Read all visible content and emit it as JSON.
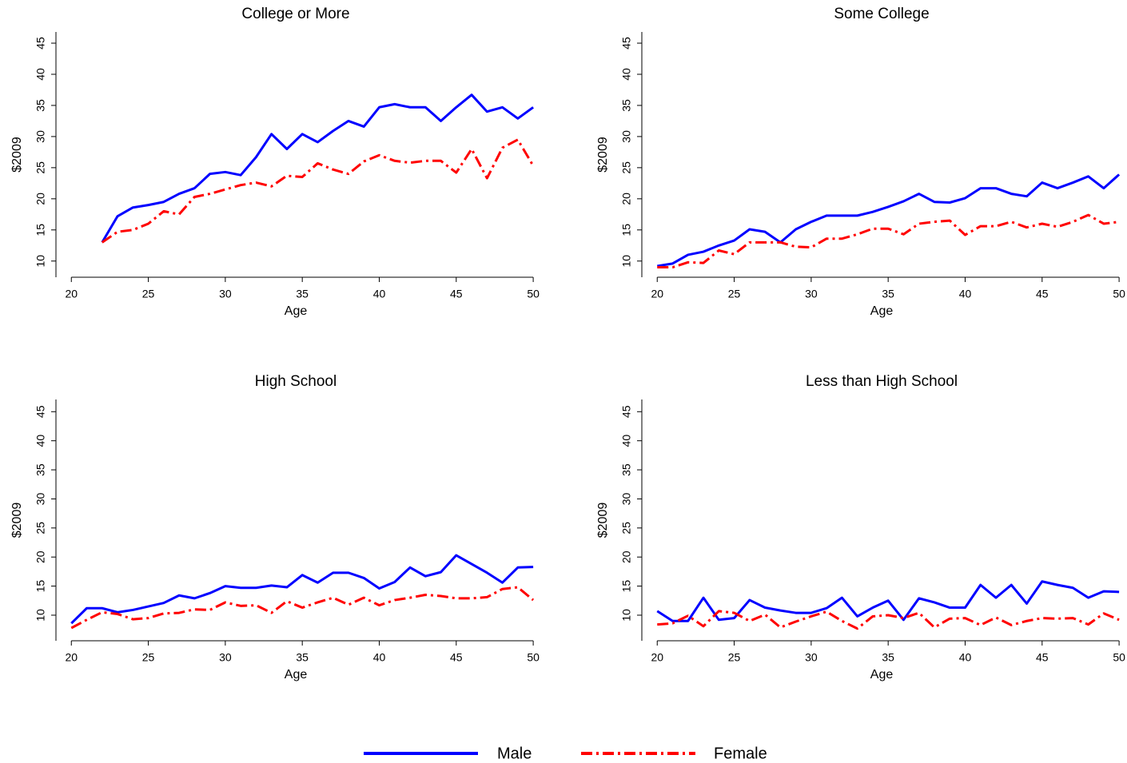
{
  "chart_data": [
    {
      "type": "line",
      "title": "College or More",
      "x_label": "Age",
      "y_label": "$2009",
      "x": [
        22,
        23,
        24,
        25,
        26,
        27,
        28,
        29,
        30,
        31,
        32,
        33,
        34,
        35,
        36,
        37,
        38,
        39,
        40,
        41,
        42,
        43,
        44,
        45,
        46,
        47,
        48,
        49,
        50
      ],
      "series": [
        {
          "name": "Male",
          "color": "#0000ff",
          "linestyle": "solid",
          "values": [
            13,
            17.2,
            18.6,
            19,
            19.5,
            20.8,
            21.7,
            24,
            24.3,
            23.8,
            26.7,
            30.4,
            28,
            30.4,
            29.1,
            30.9,
            32.5,
            31.6,
            34.7,
            35.2,
            34.7,
            34.7,
            32.5,
            34.7,
            36.7,
            34,
            34.7,
            32.9,
            34.7
          ]
        },
        {
          "name": "Female",
          "color": "#ff0000",
          "linestyle": "dashdot",
          "values": [
            13,
            14.7,
            15,
            16,
            18,
            17.5,
            20.3,
            20.8,
            21.5,
            22.2,
            22.6,
            22,
            23.7,
            23.5,
            25.7,
            24.7,
            24,
            26,
            27,
            26.1,
            25.8,
            26.1,
            26.1,
            24.2,
            28,
            23.3,
            28.2,
            29.5,
            25.3
          ]
        }
      ],
      "xlim": [
        19,
        50.15
      ],
      "ylim": [
        7.4,
        46.8
      ],
      "xticks": [
        20,
        25,
        30,
        35,
        40,
        45,
        50
      ],
      "yticks": [
        10,
        15,
        20,
        25,
        30,
        35,
        40,
        45
      ]
    },
    {
      "type": "line",
      "title": "Some College",
      "x_label": "Age",
      "y_label": "$2009",
      "x": [
        20,
        21,
        22,
        23,
        24,
        25,
        26,
        27,
        28,
        29,
        30,
        31,
        32,
        33,
        34,
        35,
        36,
        37,
        38,
        39,
        40,
        41,
        42,
        43,
        44,
        45,
        46,
        47,
        48,
        49,
        50
      ],
      "series": [
        {
          "name": "Male",
          "color": "#0000ff",
          "linestyle": "solid",
          "values": [
            9.2,
            9.6,
            11,
            11.5,
            12.5,
            13.3,
            15.1,
            14.7,
            13,
            15.1,
            16.3,
            17.3,
            17.3,
            17.3,
            17.9,
            18.7,
            19.6,
            20.8,
            19.5,
            19.4,
            20.1,
            21.7,
            21.7,
            20.8,
            20.4,
            22.6,
            21.7,
            22.6,
            23.6,
            21.7,
            23.9
          ]
        },
        {
          "name": "Female",
          "color": "#ff0000",
          "linestyle": "dashdot",
          "values": [
            9,
            9,
            9.8,
            9.7,
            11.7,
            11.1,
            13,
            13,
            13,
            12.3,
            12.2,
            13.6,
            13.6,
            14.3,
            15.2,
            15.2,
            14.3,
            16,
            16.3,
            16.5,
            14.2,
            15.6,
            15.6,
            16.3,
            15.4,
            16,
            15.5,
            16.3,
            17.4,
            16,
            16.3
          ]
        }
      ],
      "xlim": [
        19,
        50.15
      ],
      "ylim": [
        7.4,
        46.8
      ],
      "xticks": [
        20,
        25,
        30,
        35,
        40,
        45,
        50
      ],
      "yticks": [
        10,
        15,
        20,
        25,
        30,
        35,
        40,
        45
      ]
    },
    {
      "type": "line",
      "title": "High School",
      "x_label": "Age",
      "y_label": "$2009",
      "x": [
        20,
        21,
        22,
        23,
        24,
        25,
        26,
        27,
        28,
        29,
        30,
        31,
        32,
        33,
        34,
        35,
        36,
        37,
        38,
        39,
        40,
        41,
        42,
        43,
        44,
        45,
        46,
        47,
        48,
        49,
        50
      ],
      "series": [
        {
          "name": "Male",
          "color": "#0000ff",
          "linestyle": "solid",
          "values": [
            8.6,
            11.2,
            11.2,
            10.5,
            10.9,
            11.5,
            12.1,
            13.4,
            12.9,
            13.8,
            15,
            14.7,
            14.7,
            15.1,
            14.8,
            16.9,
            15.6,
            17.3,
            17.3,
            16.4,
            14.6,
            15.7,
            18.2,
            16.7,
            17.4,
            20.3,
            18.8,
            17.3,
            15.6,
            18.2,
            18.3
          ]
        },
        {
          "name": "Female",
          "color": "#ff0000",
          "linestyle": "dashdot",
          "values": [
            7.8,
            9.2,
            10.5,
            10.2,
            9.3,
            9.5,
            10.3,
            10.4,
            11,
            10.9,
            12.2,
            11.6,
            11.7,
            10.4,
            12.4,
            11.3,
            12.2,
            13,
            11.8,
            13,
            11.7,
            12.6,
            13,
            13.5,
            13.3,
            12.9,
            12.9,
            13.1,
            14.5,
            14.8,
            12.6
          ]
        }
      ],
      "xlim": [
        19,
        50.15
      ],
      "ylim": [
        5.6,
        47.1
      ],
      "xticks": [
        20,
        25,
        30,
        35,
        40,
        45,
        50
      ],
      "yticks": [
        10,
        15,
        20,
        25,
        30,
        35,
        40,
        45
      ]
    },
    {
      "type": "line",
      "title": "Less than High School",
      "x_label": "Age",
      "y_label": "$2009",
      "x": [
        20,
        21,
        22,
        23,
        24,
        25,
        26,
        27,
        28,
        29,
        30,
        31,
        32,
        33,
        34,
        35,
        36,
        37,
        38,
        39,
        40,
        41,
        42,
        43,
        44,
        45,
        46,
        47,
        48,
        49,
        50
      ],
      "series": [
        {
          "name": "Male",
          "color": "#0000ff",
          "linestyle": "solid",
          "values": [
            10.7,
            9,
            9,
            13,
            9.2,
            9.5,
            12.6,
            11.3,
            10.8,
            10.4,
            10.4,
            11.2,
            13,
            9.8,
            11.3,
            12.5,
            9.2,
            12.9,
            12.2,
            11.3,
            11.3,
            15.2,
            13,
            15.2,
            12,
            15.8,
            15.2,
            14.7,
            13,
            14.1,
            14
          ]
        },
        {
          "name": "Female",
          "color": "#ff0000",
          "linestyle": "dashdot",
          "values": [
            8.4,
            8.6,
            9.9,
            8.1,
            10.7,
            10.4,
            9,
            10.1,
            7.9,
            8.9,
            9.8,
            10.6,
            9,
            7.7,
            9.8,
            10,
            9.5,
            10.4,
            7.9,
            9.4,
            9.5,
            8.3,
            9.6,
            8.3,
            9,
            9.5,
            9.4,
            9.5,
            8.4,
            10.3,
            9.2
          ]
        }
      ],
      "xlim": [
        19,
        50.15
      ],
      "ylim": [
        5.6,
        47.1
      ],
      "xticks": [
        20,
        25,
        30,
        35,
        40,
        45,
        50
      ],
      "yticks": [
        10,
        15,
        20,
        25,
        30,
        35,
        40,
        45
      ]
    }
  ]
}
